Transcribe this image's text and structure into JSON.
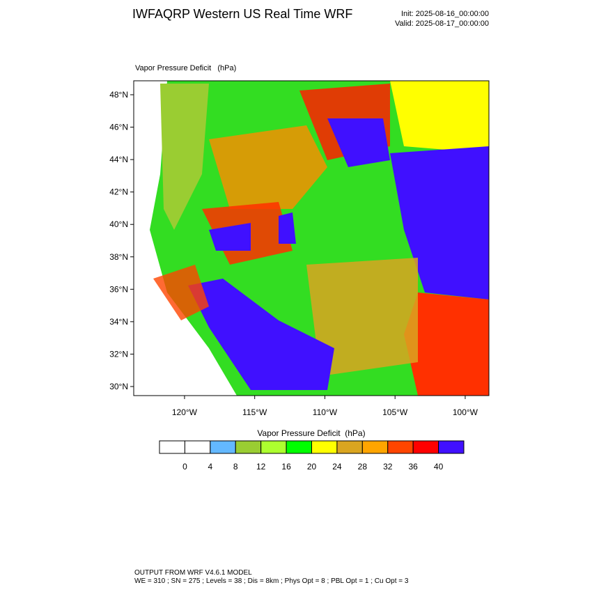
{
  "header": {
    "title": "IWFAQRP Western US Real Time WRF",
    "init": "Init: 2025-08-16_00:00:00",
    "valid": "Valid: 2025-08-17_00:00:00"
  },
  "map": {
    "field_label": "Vapor Pressure Deficit   (hPa)",
    "xlim": [
      -123.62,
      -98.31
    ],
    "ylim": [
      29.44,
      48.86
    ],
    "xticks": [
      {
        "value": -120,
        "label": "120°W"
      },
      {
        "value": -115,
        "label": "115°W"
      },
      {
        "value": -110,
        "label": "110°W"
      },
      {
        "value": -105,
        "label": "105°W"
      },
      {
        "value": -100,
        "label": "100°W"
      }
    ],
    "yticks": [
      {
        "value": 30,
        "label": "30°N"
      },
      {
        "value": 32,
        "label": "32°N"
      },
      {
        "value": 34,
        "label": "34°N"
      },
      {
        "value": 36,
        "label": "36°N"
      },
      {
        "value": 38,
        "label": "38°N"
      },
      {
        "value": 40,
        "label": "40°N"
      },
      {
        "value": 42,
        "label": "42°N"
      },
      {
        "value": 44,
        "label": "44°N"
      },
      {
        "value": 46,
        "label": "46°N"
      },
      {
        "value": 48,
        "label": "48°N"
      }
    ]
  },
  "colorbar": {
    "title": "Vapor Pressure Deficit  (hPa)",
    "colors": [
      "#ffffff",
      "#ffffff",
      "#63b8ff",
      "#9acd32",
      "#adff2f",
      "#00ff00",
      "#ffff00",
      "#daa520",
      "#ffa500",
      "#ff4500",
      "#ff0000",
      "#4010ff"
    ],
    "labels": [
      0,
      4,
      8,
      12,
      16,
      20,
      24,
      28,
      32,
      36,
      40
    ]
  },
  "footer": {
    "line1": "OUTPUT FROM WRF V4.6.1 MODEL",
    "line2": "WE = 310 ; SN = 275 ; Levels = 38 ; Dis = 8km ; Phys Opt = 8 ; PBL Opt = 1 ; Cu Opt = 3"
  }
}
